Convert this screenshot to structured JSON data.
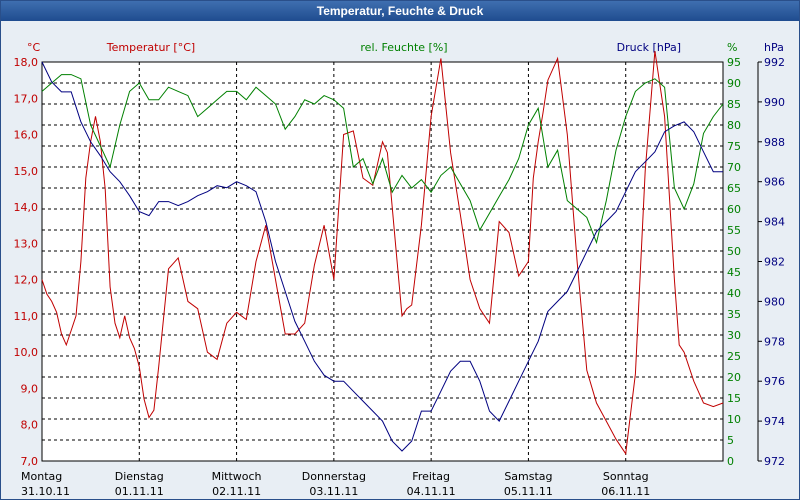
{
  "window": {
    "title": "Temperatur, Feuchte & Druck"
  },
  "chart_data": {
    "type": "line",
    "title": "Temperatur, Feuchte & Druck",
    "x_categories": [
      {
        "day": "Montag",
        "date": "31.10.11"
      },
      {
        "day": "Dienstag",
        "date": "01.11.11"
      },
      {
        "day": "Mittwoch",
        "date": "02.11.11"
      },
      {
        "day": "Donnerstag",
        "date": "03.11.11"
      },
      {
        "day": "Freitag",
        "date": "04.11.11"
      },
      {
        "day": "Samstag",
        "date": "05.11.11"
      },
      {
        "day": "Sonntag",
        "date": "06.11.11"
      }
    ],
    "axes": {
      "temperature": {
        "unit_label": "°C",
        "min": 7.0,
        "max": 18.0,
        "ticks": [
          "7,0",
          "8,0",
          "9,0",
          "10,0",
          "11,0",
          "12,0",
          "13,0",
          "14,0",
          "15,0",
          "16,0",
          "17,0",
          "18,0"
        ],
        "color": "#c00000"
      },
      "humidity": {
        "unit_label": "%",
        "min": 0,
        "max": 95,
        "ticks": [
          "0",
          "5",
          "10",
          "15",
          "20",
          "25",
          "30",
          "35",
          "40",
          "45",
          "50",
          "55",
          "60",
          "65",
          "70",
          "75",
          "80",
          "85",
          "90",
          "95"
        ],
        "color": "#008000"
      },
      "pressure": {
        "unit_label": "hPa",
        "min": 972,
        "max": 992,
        "ticks": [
          "972",
          "974",
          "976",
          "978",
          "980",
          "982",
          "984",
          "986",
          "988",
          "990",
          "992"
        ],
        "color": "#000080"
      }
    },
    "grid": true,
    "series": [
      {
        "name": "Temperatur [°C]",
        "axis": "temperature",
        "color": "#c00000",
        "x": [
          0,
          0.05,
          0.1,
          0.15,
          0.2,
          0.25,
          0.3,
          0.35,
          0.4,
          0.45,
          0.5,
          0.55,
          0.6,
          0.65,
          0.7,
          0.75,
          0.8,
          0.85,
          0.9,
          0.95,
          1.0,
          1.05,
          1.1,
          1.15,
          1.2,
          1.3,
          1.4,
          1.5,
          1.6,
          1.7,
          1.8,
          1.9,
          2.0,
          2.1,
          2.2,
          2.3,
          2.4,
          2.5,
          2.6,
          2.7,
          2.8,
          2.9,
          3.0,
          3.1,
          3.2,
          3.3,
          3.4,
          3.5,
          3.55,
          3.6,
          3.65,
          3.7,
          3.75,
          3.8,
          3.9,
          4.0,
          4.1,
          4.2,
          4.3,
          4.4,
          4.5,
          4.6,
          4.7,
          4.8,
          4.9,
          5.0,
          5.05,
          5.1,
          5.15,
          5.2,
          5.3,
          5.4,
          5.5,
          5.6,
          5.7,
          5.8,
          5.9,
          6.0,
          6.1,
          6.2,
          6.3,
          6.4,
          6.5,
          6.55,
          6.6,
          6.7,
          6.8,
          6.9,
          7.0
        ],
        "values": [
          12.0,
          11.6,
          11.4,
          11.1,
          10.5,
          10.2,
          10.6,
          11.0,
          12.5,
          14.8,
          15.8,
          16.5,
          15.8,
          14.5,
          11.8,
          10.8,
          10.4,
          11.0,
          10.4,
          10.1,
          9.6,
          8.7,
          8.2,
          8.4,
          9.6,
          12.3,
          12.6,
          11.4,
          11.2,
          10.0,
          9.8,
          10.8,
          11.1,
          10.9,
          12.5,
          13.5,
          12.0,
          10.5,
          10.5,
          10.8,
          12.4,
          13.5,
          12.0,
          16.0,
          16.1,
          14.8,
          14.6,
          15.8,
          15.5,
          14.0,
          12.5,
          11.0,
          11.2,
          11.3,
          13.5,
          16.5,
          18.1,
          15.5,
          13.8,
          12.0,
          11.2,
          10.8,
          13.6,
          13.3,
          12.1,
          12.5,
          14.8,
          15.8,
          16.6,
          17.5,
          18.1,
          16.0,
          12.5,
          9.5,
          8.6,
          8.1,
          7.6,
          7.2,
          9.4,
          15.0,
          18.3,
          16.5,
          12.0,
          10.2,
          10.0,
          9.2,
          8.6,
          8.5,
          8.6
        ]
      },
      {
        "name": "rel. Feuchte [%]",
        "axis": "humidity",
        "color": "#008000",
        "x": [
          0,
          0.1,
          0.2,
          0.3,
          0.4,
          0.5,
          0.6,
          0.7,
          0.8,
          0.9,
          1.0,
          1.1,
          1.2,
          1.3,
          1.4,
          1.5,
          1.6,
          1.7,
          1.8,
          1.9,
          2.0,
          2.1,
          2.2,
          2.3,
          2.4,
          2.5,
          2.6,
          2.7,
          2.8,
          2.9,
          3.0,
          3.1,
          3.2,
          3.3,
          3.4,
          3.5,
          3.6,
          3.7,
          3.8,
          3.9,
          4.0,
          4.1,
          4.2,
          4.3,
          4.4,
          4.5,
          4.6,
          4.7,
          4.8,
          4.9,
          5.0,
          5.1,
          5.2,
          5.3,
          5.4,
          5.5,
          5.6,
          5.7,
          5.8,
          5.9,
          6.0,
          6.1,
          6.2,
          6.3,
          6.4,
          6.5,
          6.6,
          6.7,
          6.8,
          6.9,
          7.0
        ],
        "values": [
          88,
          90,
          92,
          92,
          91,
          80,
          75,
          70,
          80,
          88,
          90,
          86,
          86,
          89,
          88,
          87,
          82,
          84,
          86,
          88,
          88,
          86,
          89,
          87,
          85,
          79,
          82,
          86,
          85,
          87,
          86,
          84,
          70,
          72,
          66,
          72,
          64,
          68,
          65,
          67,
          64,
          68,
          70,
          66,
          62,
          55,
          59,
          63,
          67,
          72,
          80,
          84,
          70,
          74,
          62,
          60,
          58,
          52,
          62,
          74,
          82,
          88,
          90,
          91,
          89,
          65,
          60,
          66,
          78,
          82,
          85
        ]
      },
      {
        "name": "Druck [hPa",
        "axis": "pressure",
        "color": "#000080",
        "x": [
          0,
          0.1,
          0.2,
          0.3,
          0.4,
          0.5,
          0.6,
          0.7,
          0.8,
          0.9,
          1.0,
          1.1,
          1.2,
          1.3,
          1.4,
          1.5,
          1.6,
          1.7,
          1.8,
          1.9,
          2.0,
          2.1,
          2.2,
          2.3,
          2.4,
          2.5,
          2.6,
          2.7,
          2.8,
          2.9,
          3.0,
          3.1,
          3.2,
          3.3,
          3.4,
          3.5,
          3.6,
          3.7,
          3.8,
          3.9,
          4.0,
          4.1,
          4.2,
          4.3,
          4.4,
          4.5,
          4.6,
          4.7,
          4.8,
          4.9,
          5.0,
          5.1,
          5.2,
          5.3,
          5.4,
          5.5,
          5.6,
          5.7,
          5.8,
          5.9,
          6.0,
          6.1,
          6.2,
          6.3,
          6.4,
          6.5,
          6.6,
          6.7,
          6.8,
          6.9,
          7.0
        ],
        "values": [
          992,
          991,
          990.5,
          990.5,
          989,
          988,
          987.3,
          986.5,
          986,
          985.3,
          984.5,
          984.3,
          985,
          985,
          984.8,
          985,
          985.3,
          985.5,
          985.8,
          985.7,
          986,
          985.8,
          985.5,
          984,
          982,
          980.5,
          979,
          978,
          977,
          976.3,
          976,
          976,
          975.5,
          975,
          974.5,
          974,
          973,
          972.5,
          973,
          974.5,
          974.5,
          975.5,
          976.5,
          977,
          977,
          976,
          974.5,
          974,
          975,
          976,
          977,
          978,
          979.5,
          980,
          980.5,
          981.5,
          982.5,
          983.5,
          984,
          984.5,
          985.5,
          986.5,
          987,
          987.5,
          988.5,
          988.8,
          989,
          988.5,
          987.5,
          986.5,
          986.5
        ]
      }
    ],
    "legend": [
      {
        "text": "Temperatur [°C]",
        "position": "top-left"
      },
      {
        "text": "rel. Feuchte [%]",
        "position": "top-center"
      },
      {
        "text": "Druck [hPa]",
        "position": "top-right"
      }
    ]
  }
}
